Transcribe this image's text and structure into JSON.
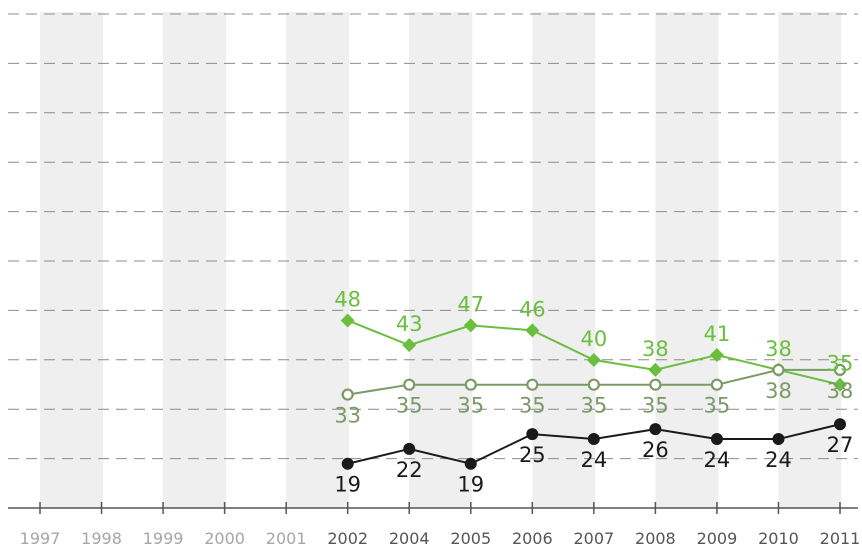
{
  "chart_data": {
    "type": "line",
    "categories": [
      "1997",
      "1998",
      "1999",
      "2000",
      "2001",
      "2002",
      "2004",
      "2005",
      "2006",
      "2007",
      "2008",
      "2009",
      "2010",
      "2011"
    ],
    "category_label_colors": [
      "#a6a6a6",
      "#a6a6a6",
      "#a6a6a6",
      "#a6a6a6",
      "#a6a6a6",
      "#555555",
      "#555555",
      "#555555",
      "#555555",
      "#555555",
      "#555555",
      "#555555",
      "#555555",
      "#555555"
    ],
    "ylim": [
      0,
      100
    ],
    "grid": true,
    "series": [
      {
        "marker": "diamond",
        "color": "#6bbf3f",
        "label_position": "above",
        "values": [
          null,
          null,
          null,
          null,
          null,
          48,
          43,
          47,
          46,
          40,
          38,
          41,
          38,
          35
        ],
        "labels": [
          "",
          "",
          "",
          "",
          "",
          "48",
          "43",
          "47",
          "46",
          "40",
          "38",
          "41",
          "38",
          "35"
        ]
      },
      {
        "marker": "open-circle",
        "color": "#7a9a66",
        "label_position": "below",
        "values": [
          null,
          null,
          null,
          null,
          null,
          33,
          35,
          35,
          35,
          35,
          35,
          35,
          38,
          38
        ],
        "labels": [
          "",
          "",
          "",
          "",
          "",
          "33",
          "35",
          "35",
          "35",
          "35",
          "35",
          "35",
          "38",
          "38"
        ]
      },
      {
        "marker": "circle",
        "color": "#1a1a1a",
        "label_position": "below",
        "values": [
          null,
          null,
          null,
          null,
          null,
          19,
          22,
          19,
          25,
          24,
          26,
          24,
          24,
          27
        ],
        "labels": [
          "",
          "",
          "",
          "",
          "",
          "19",
          "22",
          "19",
          "25",
          "24",
          "26",
          "24",
          "24",
          "27"
        ]
      }
    ]
  }
}
